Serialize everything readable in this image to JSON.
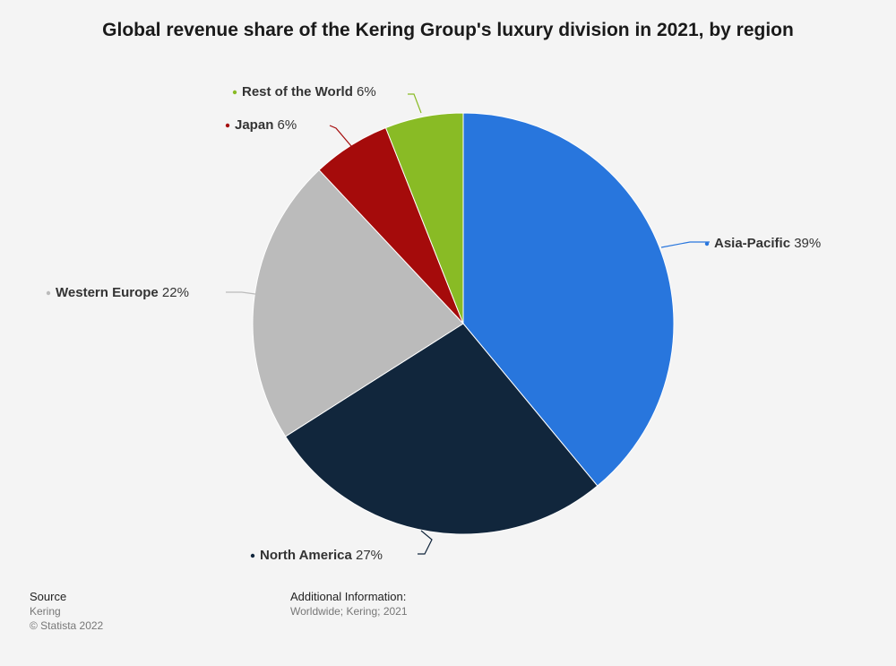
{
  "title": "Global revenue share of the Kering Group's luxury division in 2021, by region",
  "chart_data": {
    "type": "pie",
    "unit": "%",
    "slices": [
      {
        "name": "Asia-Pacific",
        "value": 39,
        "color": "#2876dd"
      },
      {
        "name": "North America",
        "value": 27,
        "color": "#11263c"
      },
      {
        "name": "Western Europe",
        "value": 22,
        "color": "#bbbbbb"
      },
      {
        "name": "Japan",
        "value": 6,
        "color": "#a50b0b"
      },
      {
        "name": "Rest of the World",
        "value": 6,
        "color": "#89bb25"
      }
    ]
  },
  "footer": {
    "source_heading": "Source",
    "source_name": "Kering",
    "copyright": "© Statista 2022",
    "additional_heading": "Additional Information:",
    "additional_text": "Worldwide; Kering; 2021"
  }
}
